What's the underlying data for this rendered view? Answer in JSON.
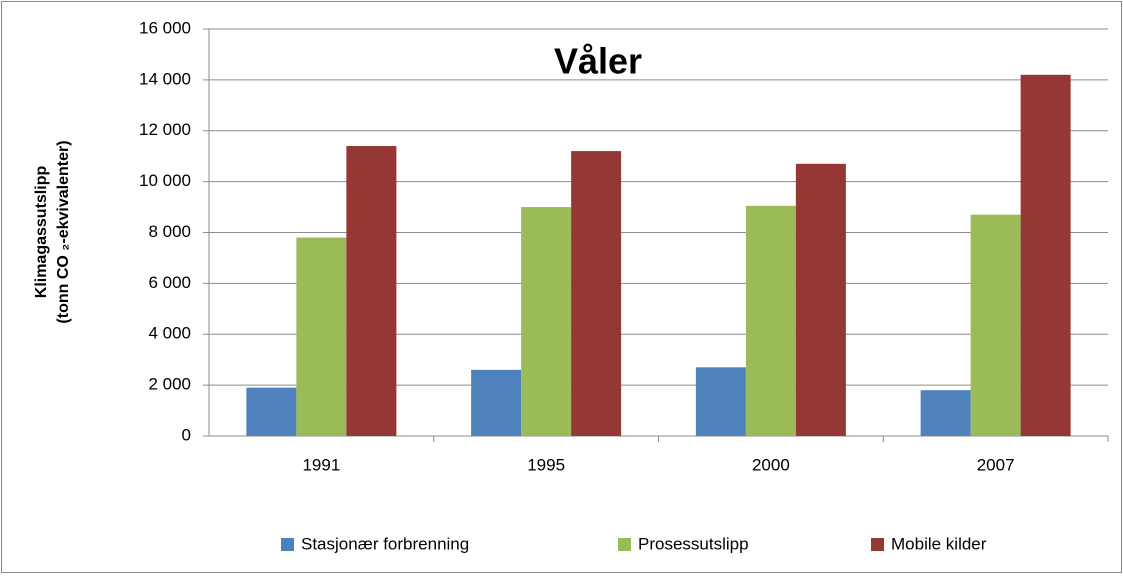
{
  "chart_data": {
    "type": "bar",
    "title": "Våler",
    "y_label": [
      "Klimagassutslipp",
      "(tonn CO ₂-ekvivalenter)"
    ],
    "categories": [
      "1991",
      "1995",
      "2000",
      "2007"
    ],
    "series": [
      {
        "name": "Stasjonær forbrenning",
        "color": "#4f81bd",
        "values": [
          1900,
          2600,
          2700,
          1800
        ]
      },
      {
        "name": "Prosessutslipp",
        "color": "#9bbb59",
        "values": [
          7800,
          9000,
          9050,
          8700
        ]
      },
      {
        "name": "Mobile kilder",
        "color": "#953735",
        "values": [
          11400,
          11200,
          10700,
          14200
        ]
      }
    ],
    "ylim": [
      0,
      16000
    ],
    "yticks": [
      0,
      {
        "value": 2000,
        "label": "2 000"
      },
      {
        "value": 4000,
        "label": "4 000"
      },
      {
        "value": 6000,
        "label": "6 000"
      },
      {
        "value": 8000,
        "label": "8 000"
      },
      {
        "value": 10000,
        "label": "10 000"
      },
      {
        "value": 12000,
        "label": "12 000"
      },
      {
        "value": 14000,
        "label": "14 000"
      },
      {
        "value": 16000,
        "label": "16 000"
      }
    ],
    "grid": true
  }
}
